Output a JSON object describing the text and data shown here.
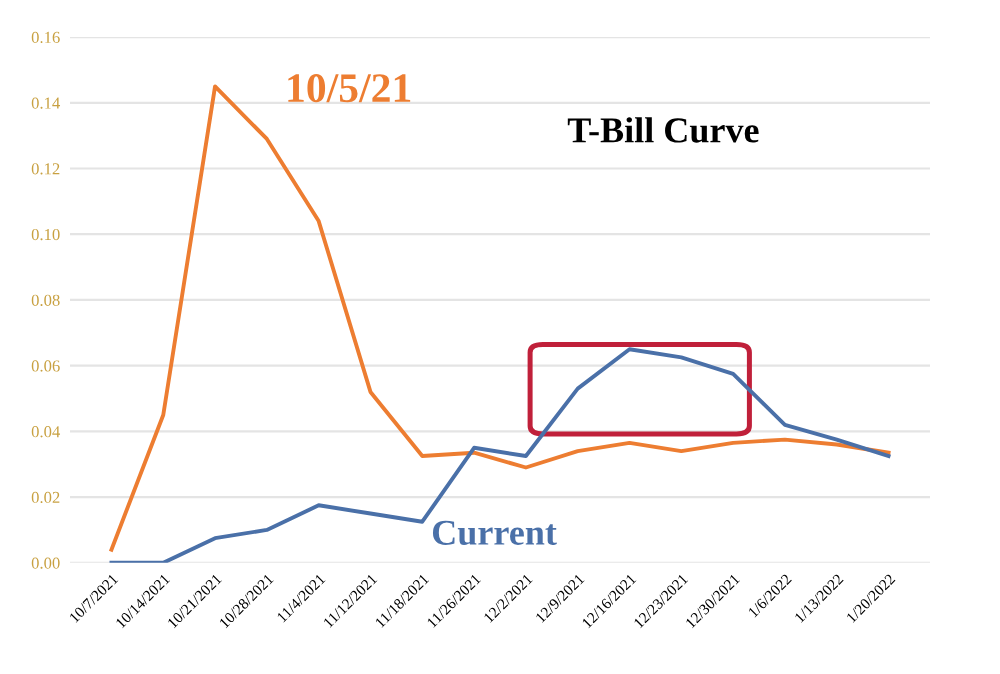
{
  "chart_data": {
    "type": "line",
    "title": "T-Bill Curve",
    "categories": [
      "10/7/2021",
      "10/14/2021",
      "10/21/2021",
      "10/28/2021",
      "11/4/2021",
      "11/12/2021",
      "11/18/2021",
      "11/26/2021",
      "12/2/2021",
      "12/9/2021",
      "12/16/2021",
      "12/23/2021",
      "12/30/2021",
      "1/6/2022",
      "1/13/2022",
      "1/20/2022"
    ],
    "series": [
      {
        "name": "10/5/21",
        "color": "#ed7d31",
        "values": [
          0.004,
          0.045,
          0.145,
          0.129,
          0.104,
          0.052,
          0.0325,
          0.0335,
          0.029,
          0.034,
          0.0365,
          0.034,
          0.0365,
          0.0375,
          0.036,
          0.0335
        ]
      },
      {
        "name": "Current",
        "color": "#4a70a8",
        "values": [
          0.0,
          0.0,
          0.0075,
          0.01,
          0.0175,
          0.015,
          0.0125,
          0.035,
          0.0325,
          0.053,
          0.065,
          0.0625,
          0.0575,
          0.042,
          0.0375,
          0.0325
        ]
      }
    ],
    "ylim": [
      0,
      0.16
    ],
    "yticks": [
      {
        "value": 0,
        "label": "0.00"
      },
      {
        "value": 0.02,
        "label": "0.02"
      },
      {
        "value": 0.04,
        "label": "0.04"
      },
      {
        "value": 0.06,
        "label": "0.06"
      },
      {
        "value": 0.08,
        "label": "0.08"
      },
      {
        "value": 0.1,
        "label": "0.10"
      },
      {
        "value": 0.12,
        "label": "0.12"
      },
      {
        "value": 0.14,
        "label": "0.14"
      },
      {
        "value": 0.16,
        "label": "0.16"
      }
    ],
    "grid": "y",
    "legend": false,
    "marker": "none",
    "line_style": "solid"
  }
}
